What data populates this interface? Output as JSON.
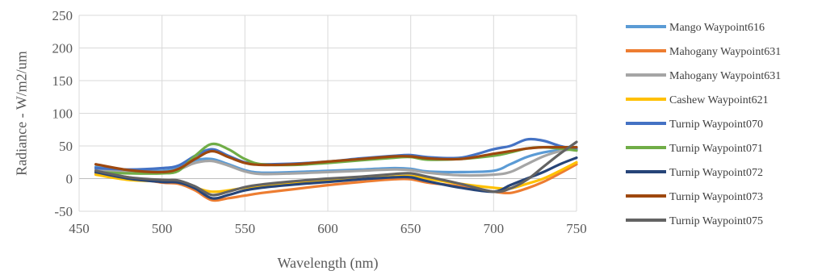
{
  "chart_data": {
    "type": "line",
    "title": "",
    "xlabel": "Wavelength (nm)",
    "ylabel": "Radiance - W/m2/um",
    "xlim": [
      450,
      750
    ],
    "ylim": [
      -50,
      250
    ],
    "xticks": [
      450,
      500,
      550,
      600,
      650,
      700,
      750
    ],
    "yticks": [
      -50,
      0,
      50,
      100,
      150,
      200,
      250
    ],
    "grid": true,
    "legend_position": "right",
    "x": [
      460,
      480,
      500,
      510,
      520,
      530,
      540,
      550,
      560,
      580,
      600,
      620,
      640,
      650,
      660,
      680,
      700,
      710,
      720,
      730,
      740,
      750
    ],
    "series": [
      {
        "name": "Mango Waypoint616",
        "color": "#5B9BD5",
        "values": [
          18,
          12,
          12,
          16,
          28,
          30,
          22,
          13,
          9,
          10,
          12,
          14,
          16,
          15,
          11,
          10,
          12,
          22,
          33,
          40,
          44,
          48
        ]
      },
      {
        "name": "Mahogany Waypoint631",
        "color": "#ED7D31",
        "values": [
          8,
          2,
          -6,
          -8,
          -18,
          -33,
          -30,
          -26,
          -22,
          -16,
          -10,
          -5,
          -1,
          -1,
          -6,
          -12,
          -20,
          -22,
          -15,
          -5,
          8,
          22
        ]
      },
      {
        "name": "Mahogany Waypoint631",
        "color": "#A5A5A5",
        "values": [
          14,
          10,
          10,
          14,
          24,
          27,
          20,
          11,
          7,
          8,
          10,
          12,
          14,
          13,
          9,
          5,
          6,
          10,
          22,
          34,
          42,
          46
        ]
      },
      {
        "name": "Cashew Waypoint621",
        "color": "#FFC000",
        "values": [
          6,
          -2,
          -4,
          -6,
          -14,
          -20,
          -18,
          -14,
          -11,
          -7,
          -3,
          0,
          3,
          4,
          0,
          -8,
          -14,
          -15,
          -8,
          0,
          12,
          25
        ]
      },
      {
        "name": "Turnip Waypoint070",
        "color": "#4472C4",
        "values": [
          16,
          14,
          16,
          20,
          35,
          45,
          35,
          25,
          22,
          23,
          26,
          31,
          35,
          36,
          33,
          32,
          45,
          50,
          60,
          58,
          50,
          45
        ]
      },
      {
        "name": "Turnip Waypoint071",
        "color": "#70AD47",
        "values": [
          10,
          8,
          8,
          12,
          35,
          53,
          45,
          30,
          22,
          21,
          24,
          28,
          32,
          33,
          29,
          30,
          35,
          40,
          46,
          48,
          46,
          43
        ]
      },
      {
        "name": "Turnip Waypoint072",
        "color": "#264478",
        "values": [
          10,
          0,
          -5,
          -6,
          -15,
          -30,
          -25,
          -18,
          -14,
          -9,
          -5,
          -1,
          2,
          2,
          -4,
          -14,
          -20,
          -10,
          0,
          10,
          22,
          32
        ]
      },
      {
        "name": "Turnip Waypoint073",
        "color": "#9E480E",
        "values": [
          22,
          13,
          10,
          15,
          30,
          42,
          33,
          24,
          21,
          22,
          26,
          30,
          34,
          34,
          31,
          30,
          38,
          42,
          46,
          48,
          48,
          48
        ]
      },
      {
        "name": "Turnip Waypoint075",
        "color": "#636363",
        "values": [
          12,
          2,
          -2,
          -3,
          -12,
          -25,
          -20,
          -13,
          -9,
          -4,
          0,
          3,
          7,
          8,
          3,
          -8,
          -20,
          -15,
          -2,
          18,
          38,
          56
        ]
      }
    ]
  }
}
